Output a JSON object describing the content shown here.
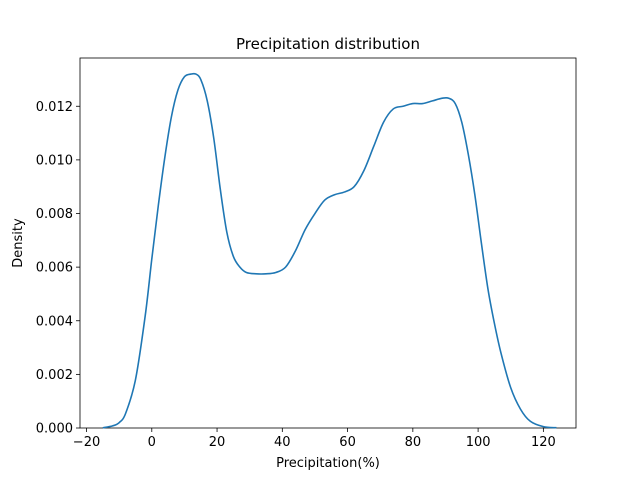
{
  "chart_data": {
    "type": "line",
    "title": "Precipitation distribution",
    "xlabel": "Precipitation(%)",
    "ylabel": "Density",
    "xlim": [
      -22,
      130
    ],
    "ylim": [
      0,
      0.0138
    ],
    "xticks": [
      -20,
      0,
      20,
      40,
      60,
      80,
      100,
      120
    ],
    "xtick_labels": [
      "−20",
      "0",
      "20",
      "40",
      "60",
      "80",
      "100",
      "120"
    ],
    "yticks": [
      0,
      0.002,
      0.004,
      0.006,
      0.008,
      0.01,
      0.012
    ],
    "ytick_labels": [
      "0.000",
      "0.002",
      "0.004",
      "0.006",
      "0.008",
      "0.010",
      "0.012"
    ],
    "grid": false,
    "series": [
      {
        "color": "#1f77b4",
        "x": [
          -15,
          -12,
          -10,
          -8,
          -5,
          -2,
          0,
          2,
          4,
          6,
          8,
          10,
          12,
          13.5,
          15,
          17,
          19,
          21,
          23,
          25,
          27,
          29,
          32,
          35,
          38,
          41,
          44,
          47,
          50,
          53,
          56,
          59,
          62,
          65,
          68,
          71,
          74,
          77,
          80,
          83,
          86,
          89,
          91,
          93,
          95,
          97,
          99,
          101,
          103,
          105,
          107,
          110,
          113,
          116,
          120,
          124
        ],
        "y": [
          1e-05,
          8e-05,
          0.0002,
          0.00055,
          0.0018,
          0.0042,
          0.0063,
          0.0083,
          0.0101,
          0.0116,
          0.0126,
          0.0131,
          0.0132,
          0.0132,
          0.013,
          0.0122,
          0.0108,
          0.0089,
          0.0073,
          0.0064,
          0.006,
          0.0058,
          0.00575,
          0.00575,
          0.0058,
          0.006,
          0.0066,
          0.0074,
          0.008,
          0.0085,
          0.0087,
          0.0088,
          0.009,
          0.0096,
          0.0105,
          0.0114,
          0.0119,
          0.012,
          0.0121,
          0.0121,
          0.0122,
          0.0123,
          0.0123,
          0.0121,
          0.0114,
          0.0102,
          0.0087,
          0.0069,
          0.0052,
          0.0039,
          0.0028,
          0.0015,
          0.0007,
          0.00025,
          5e-05,
          1e-05
        ]
      }
    ]
  }
}
